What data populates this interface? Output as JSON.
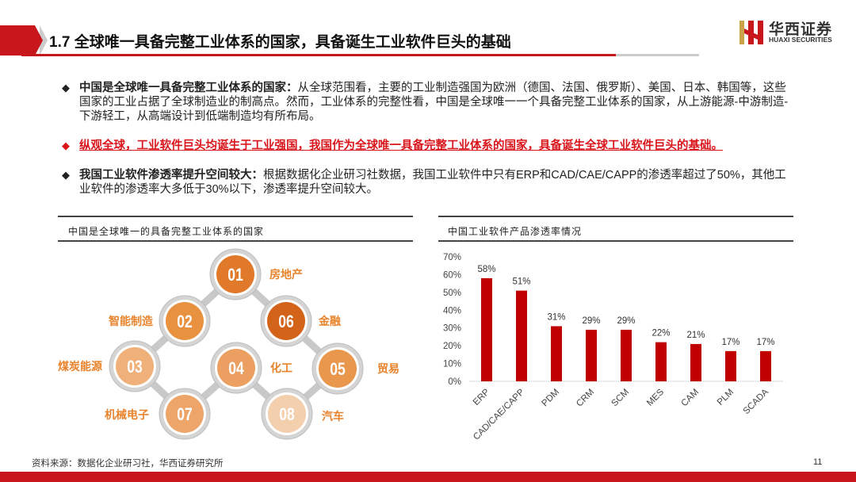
{
  "header": {
    "title": "1.7 全球唯一具备完整工业体系的国家，具备诞生工业软件巨头的基础",
    "logo_cn": "华西证券",
    "logo_en": "HUAXI SECURITIES"
  },
  "bullets": [
    {
      "bold": "中国是全球唯一具备完整工业体系的国家：",
      "text": "从全球范围看，主要的工业制造强国为欧洲（德国、法国、俄罗斯）、美国、日本、韩国等，这些国家的工业占据了全球制造业的制高点。然而，工业体系的完整性看，中国是全球唯一一个具备完整工业体系的国家，从上游能源-中游制造-下游轻工，从高端设计到低端制造均有所布局。"
    },
    {
      "bold": "",
      "text": "纵观全球，工业软件巨头均诞生于工业强国，我国作为全球唯一具备完整工业体系的国家，具备诞生全球工业软件巨头的基础。"
    },
    {
      "bold": "我国工业软件渗透率提升空间较大：",
      "text": "根据数据化企业研习社数据，我国工业软件中只有ERP和CAD/CAE/CAPP的渗透率超过了50%，其他工业软件的渗透率大多低于30%以下，渗透率提升空间较大。"
    }
  ],
  "left_panel": {
    "title": "中国是全球唯一的具备完整工业体系的国家",
    "nodes": [
      {
        "num": "01",
        "label": "房地产",
        "color": "#e07a2a"
      },
      {
        "num": "02",
        "label": "智能制造",
        "color": "#e8913f"
      },
      {
        "num": "03",
        "label": "煤炭能源",
        "color": "#f0b07a"
      },
      {
        "num": "04",
        "label": "化工",
        "color": "#eba061"
      },
      {
        "num": "05",
        "label": "贸易",
        "color": "#e8974c"
      },
      {
        "num": "06",
        "label": "金融",
        "color": "#d4631a"
      },
      {
        "num": "07",
        "label": "机械电子",
        "color": "#eda56a"
      },
      {
        "num": "08",
        "label": "汽车",
        "color": "#f3cfae"
      }
    ]
  },
  "right_panel": {
    "title": "中国工业软件产品渗透率情况"
  },
  "chart_data": {
    "type": "bar",
    "title": "中国工业软件产品渗透率情况",
    "categories": [
      "ERP",
      "CAD/CAE/CAPP",
      "PDM",
      "CRM",
      "SCM",
      "MES",
      "CAM",
      "PLM",
      "SCADA"
    ],
    "values": [
      58,
      51,
      31,
      29,
      29,
      22,
      21,
      17,
      17
    ],
    "value_labels": [
      "58%",
      "51%",
      "31%",
      "29%",
      "29%",
      "22%",
      "21%",
      "17%",
      "17%"
    ],
    "yticks": [
      "0%",
      "10%",
      "20%",
      "30%",
      "40%",
      "50%",
      "60%",
      "70%"
    ],
    "ylim": [
      0,
      70
    ],
    "xlabel": "",
    "ylabel": "",
    "bar_color": "#c00000"
  },
  "footer": {
    "source": "资料来源：数据化企业研习社，华西证券研究所",
    "page": "11"
  }
}
